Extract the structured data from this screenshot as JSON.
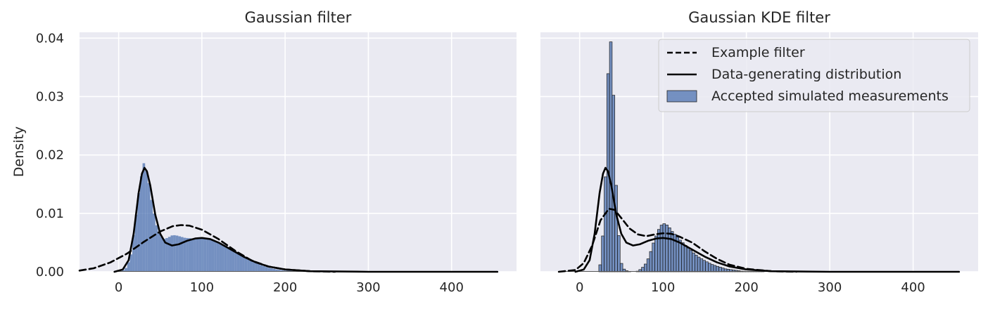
{
  "chart_data": [
    {
      "type": "histogram+line",
      "title": "Gaussian filter",
      "xlabel": "",
      "ylabel": "Density",
      "xlim": [
        -47,
        478
      ],
      "ylim": [
        0,
        0.041
      ],
      "xticks": [
        0,
        100,
        200,
        300,
        400
      ],
      "xtick_labels": [
        "0",
        "100",
        "200",
        "300",
        "400"
      ],
      "yticks": [
        0,
        0.01,
        0.02,
        0.03,
        0.04
      ],
      "ytick_labels": [
        "0.00",
        "0.01",
        "0.02",
        "0.03",
        "0.04"
      ],
      "grid": true,
      "legend": null,
      "histogram": {
        "name": "Accepted simulated measurements",
        "color": "#4C72B0",
        "range": [
          -5,
          455
        ],
        "edges_visible": false,
        "profile": [
          [
            -5,
            0
          ],
          [
            5,
            0.0002
          ],
          [
            10,
            0.0008
          ],
          [
            15,
            0.003
          ],
          [
            20,
            0.0085
          ],
          [
            25,
            0.0145
          ],
          [
            30,
            0.0187
          ],
          [
            35,
            0.0165
          ],
          [
            40,
            0.0118
          ],
          [
            45,
            0.0082
          ],
          [
            50,
            0.0062
          ],
          [
            55,
            0.0056
          ],
          [
            60,
            0.0059
          ],
          [
            65,
            0.0063
          ],
          [
            70,
            0.0062
          ],
          [
            80,
            0.0058
          ],
          [
            90,
            0.0057
          ],
          [
            100,
            0.0058
          ],
          [
            110,
            0.0056
          ],
          [
            120,
            0.0051
          ],
          [
            130,
            0.0043
          ],
          [
            140,
            0.0035
          ],
          [
            150,
            0.0027
          ],
          [
            160,
            0.0019
          ],
          [
            170,
            0.0012
          ],
          [
            180,
            0.0007
          ],
          [
            190,
            0.0004
          ],
          [
            200,
            0.0002
          ],
          [
            220,
            0.0001
          ],
          [
            260,
            5e-05
          ],
          [
            455,
            0
          ]
        ]
      },
      "series": [
        {
          "name": "Example filter",
          "style": "dashed",
          "color": "#000000",
          "points": [
            [
              -47,
              0.0002
            ],
            [
              -30,
              0.0006
            ],
            [
              -10,
              0.0016
            ],
            [
              10,
              0.0031
            ],
            [
              30,
              0.0051
            ],
            [
              50,
              0.0069
            ],
            [
              65,
              0.0078
            ],
            [
              75,
              0.008
            ],
            [
              85,
              0.0079
            ],
            [
              100,
              0.0072
            ],
            [
              120,
              0.0056
            ],
            [
              140,
              0.0036
            ],
            [
              160,
              0.0019
            ],
            [
              180,
              0.0009
            ],
            [
              200,
              0.0004
            ],
            [
              230,
              0.0001
            ],
            [
              260,
              0
            ]
          ]
        },
        {
          "name": "Data-generating distribution",
          "style": "solid",
          "color": "#000000",
          "points": [
            [
              -5,
              0
            ],
            [
              5,
              0.0004
            ],
            [
              12,
              0.002
            ],
            [
              18,
              0.0065
            ],
            [
              24,
              0.0135
            ],
            [
              28,
              0.0168
            ],
            [
              31,
              0.0178
            ],
            [
              34,
              0.0172
            ],
            [
              38,
              0.0148
            ],
            [
              44,
              0.0098
            ],
            [
              50,
              0.0065
            ],
            [
              56,
              0.005
            ],
            [
              64,
              0.0045
            ],
            [
              72,
              0.0047
            ],
            [
              82,
              0.0053
            ],
            [
              92,
              0.0057
            ],
            [
              100,
              0.0058
            ],
            [
              110,
              0.0056
            ],
            [
              120,
              0.005
            ],
            [
              135,
              0.0038
            ],
            [
              150,
              0.0026
            ],
            [
              165,
              0.0016
            ],
            [
              180,
              0.0009
            ],
            [
              200,
              0.0004
            ],
            [
              230,
              0.0001
            ],
            [
              300,
              0
            ],
            [
              455,
              0
            ]
          ]
        }
      ]
    },
    {
      "type": "histogram+line",
      "title": "Gaussian KDE filter",
      "xlabel": "",
      "ylabel": "",
      "xlim": [
        -47,
        478
      ],
      "ylim": [
        0,
        0.041
      ],
      "xticks": [
        0,
        100,
        200,
        300,
        400
      ],
      "xtick_labels": [
        "0",
        "100",
        "200",
        "300",
        "400"
      ],
      "yticks": [
        0,
        0.01,
        0.02,
        0.03,
        0.04
      ],
      "ytick_labels": [],
      "grid": true,
      "legend": "top-right",
      "histogram": {
        "name": "Accepted simulated measurements",
        "color": "#4C72B0",
        "range": [
          -25,
          455
        ],
        "edges_visible": true,
        "profile": [
          [
            22,
            0
          ],
          [
            24,
            0.0005
          ],
          [
            27,
            0.004
          ],
          [
            30,
            0.012
          ],
          [
            32,
            0.0205
          ],
          [
            35,
            0.0388
          ],
          [
            38,
            0.0395
          ],
          [
            41,
            0.0288
          ],
          [
            44,
            0.0138
          ],
          [
            47,
            0.0062
          ],
          [
            50,
            0.0015
          ],
          [
            53,
            0.0005
          ],
          [
            56,
            0.0002
          ],
          [
            60,
            0
          ],
          [
            68,
            0
          ],
          [
            72,
            0.0003
          ],
          [
            76,
            0.0008
          ],
          [
            80,
            0.0015
          ],
          [
            84,
            0.0028
          ],
          [
            88,
            0.0047
          ],
          [
            92,
            0.0062
          ],
          [
            96,
            0.0076
          ],
          [
            100,
            0.0083
          ],
          [
            104,
            0.0081
          ],
          [
            108,
            0.0075
          ],
          [
            112,
            0.0067
          ],
          [
            116,
            0.0062
          ],
          [
            120,
            0.0055
          ],
          [
            125,
            0.0048
          ],
          [
            130,
            0.0041
          ],
          [
            136,
            0.0033
          ],
          [
            142,
            0.0026
          ],
          [
            150,
            0.0019
          ],
          [
            158,
            0.0013
          ],
          [
            166,
            0.0009
          ],
          [
            175,
            0.0005
          ],
          [
            185,
            0.0003
          ],
          [
            195,
            0.0001
          ],
          [
            210,
            5e-05
          ],
          [
            220,
            0
          ],
          [
            455,
            0
          ]
        ]
      },
      "series": [
        {
          "name": "Example filter",
          "style": "dashed",
          "color": "#000000",
          "points": [
            [
              -25,
              0
            ],
            [
              -5,
              0.0003
            ],
            [
              5,
              0.0015
            ],
            [
              15,
              0.0045
            ],
            [
              25,
              0.0088
            ],
            [
              35,
              0.0108
            ],
            [
              42,
              0.0106
            ],
            [
              50,
              0.0092
            ],
            [
              60,
              0.0074
            ],
            [
              70,
              0.0064
            ],
            [
              80,
              0.0061
            ],
            [
              90,
              0.0064
            ],
            [
              100,
              0.0066
            ],
            [
              110,
              0.0065
            ],
            [
              120,
              0.006
            ],
            [
              135,
              0.005
            ],
            [
              150,
              0.0035
            ],
            [
              165,
              0.0022
            ],
            [
              180,
              0.0012
            ],
            [
              200,
              0.0005
            ],
            [
              230,
              0.0001
            ],
            [
              260,
              0
            ]
          ]
        },
        {
          "name": "Data-generating distribution",
          "style": "solid",
          "color": "#000000",
          "points": [
            [
              -5,
              0
            ],
            [
              5,
              0.0004
            ],
            [
              12,
              0.002
            ],
            [
              18,
              0.0065
            ],
            [
              24,
              0.0135
            ],
            [
              28,
              0.0168
            ],
            [
              31,
              0.0178
            ],
            [
              34,
              0.0172
            ],
            [
              38,
              0.0148
            ],
            [
              44,
              0.0098
            ],
            [
              50,
              0.0065
            ],
            [
              56,
              0.005
            ],
            [
              64,
              0.0045
            ],
            [
              72,
              0.0047
            ],
            [
              82,
              0.0053
            ],
            [
              92,
              0.0057
            ],
            [
              100,
              0.0058
            ],
            [
              110,
              0.0056
            ],
            [
              120,
              0.005
            ],
            [
              135,
              0.0038
            ],
            [
              150,
              0.0026
            ],
            [
              165,
              0.0016
            ],
            [
              180,
              0.0009
            ],
            [
              200,
              0.0004
            ],
            [
              230,
              0.0001
            ],
            [
              300,
              0
            ],
            [
              455,
              0
            ]
          ]
        }
      ]
    }
  ],
  "legend_entries": [
    {
      "label": "Example filter",
      "kind": "dashed-line"
    },
    {
      "label": "Data-generating distribution",
      "kind": "solid-line"
    },
    {
      "label": "Accepted simulated measurements",
      "kind": "bar-patch"
    }
  ],
  "colors": {
    "axes_background": "#EAEAF2",
    "grid": "#FFFFFF",
    "histogram_fill": "#4C72B0",
    "line": "#000000",
    "text": "#262626"
  }
}
